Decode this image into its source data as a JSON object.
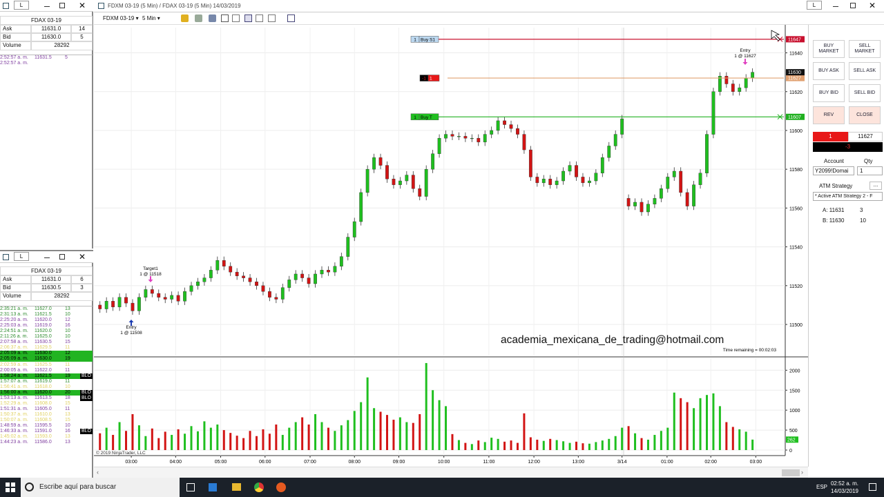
{
  "main": {
    "title": "FDXM 03-19 (5 Min) / FDAX 03-19 (5 Min)  14/03/2019",
    "instrument": "FDXM 03-19",
    "interval": "5 Min"
  },
  "quote_1": {
    "link": "L",
    "title": "FDAX 03-19",
    "ask_label": "Ask",
    "ask": "11631.0",
    "ask_size": "14",
    "bid_label": "Bid",
    "bid": "11630.0",
    "bid_size": "5",
    "volume_label": "Volume",
    "volume": "28292",
    "tape": [
      {
        "time": "2:52:57 a. m.",
        "price": "11631.5",
        "size": "5",
        "color": "#8040a0"
      },
      {
        "time": "2:52:57 a. m.",
        "color": "#8040a0"
      }
    ]
  },
  "quote_2": {
    "link": "L",
    "title": "FDAX 03-19",
    "ask_label": "Ask",
    "ask": "11631.0",
    "ask_size": "6",
    "bid_label": "Bid",
    "bid": "11630.5",
    "bid_size": "3",
    "volume_label": "Volume",
    "volume": "28292",
    "tape": [
      {
        "time": "2:35:21 a. m.",
        "price": "11627.0",
        "size": "13",
        "color": "#2e8b2e"
      },
      {
        "time": "2:31:13 a. m.",
        "price": "11621.5",
        "size": "10",
        "color": "#2e8b2e"
      },
      {
        "time": "2:25:20 a. m.",
        "price": "11620.0",
        "size": "12",
        "color": "#8040a0"
      },
      {
        "time": "2:25:03 a. m.",
        "price": "11619.0",
        "size": "16",
        "color": "#8040a0"
      },
      {
        "time": "2:24:51 a. m.",
        "price": "11620.0",
        "size": "10",
        "color": "#2e8b2e"
      },
      {
        "time": "2:11:26 a. m.",
        "price": "11625.0",
        "size": "10",
        "color": "#2e8b2e"
      },
      {
        "time": "2:07:58 a. m.",
        "price": "11630.5",
        "size": "15",
        "color": "#8040a0"
      },
      {
        "time": "2:06:37 a. m.",
        "price": "11629.5",
        "size": "11",
        "color": "#e0d060"
      },
      {
        "time": "2:05:09 a. m.",
        "price": "11630.0",
        "size": "12",
        "color": "#000000",
        "highlight": "#22b422"
      },
      {
        "time": "2:05:09 a. m.",
        "price": "11630.0",
        "size": "19",
        "color": "#000000",
        "highlight": "#22b422"
      },
      {
        "time": "2:02:59 a. m.",
        "price": "11625.5",
        "size": "11",
        "color": "#e0d060"
      },
      {
        "time": "2:00:05 a. m.",
        "price": "11622.0",
        "size": "11",
        "color": "#8040a0"
      },
      {
        "time": "1:58:24 a. m.",
        "price": "11621.5",
        "size": "19",
        "color": "#000000",
        "highlight": "#22b422",
        "flag": "BLO"
      },
      {
        "time": "1:57:07 a. m.",
        "price": "11619.0",
        "size": "11",
        "color": "#2e8b2e"
      },
      {
        "time": "1:56:41 a. m.",
        "price": "11618.0",
        "size": "10",
        "color": "#e0d060"
      },
      {
        "time": "1:56:00 a. m.",
        "price": "11620.0",
        "size": "20",
        "color": "#000000",
        "highlight": "#22b422",
        "flag": "BLO"
      },
      {
        "time": "1:53:13 a. m.",
        "price": "11613.5",
        "size": "18",
        "color": "#8040a0",
        "flag": "BLO"
      },
      {
        "time": "1:52:29 a. m.",
        "price": "11608.0",
        "size": "15",
        "color": "#e0d060"
      },
      {
        "time": "1:51:31 a. m.",
        "price": "11605.0",
        "size": "11",
        "color": "#8040a0"
      },
      {
        "time": "1:50:37 a. m.",
        "price": "11610.0",
        "size": "13",
        "color": "#e0d060"
      },
      {
        "time": "1:50:07 a. m.",
        "price": "11608.5",
        "size": "15",
        "color": "#e0d060"
      },
      {
        "time": "1:48:59 a. m.",
        "price": "11595.5",
        "size": "10",
        "color": "#8040a0"
      },
      {
        "time": "1:46:33 a. m.",
        "price": "11591.0",
        "size": "16",
        "color": "#8040a0",
        "flag": "BLO"
      },
      {
        "time": "1:45:02 a. m.",
        "price": "11593.0",
        "size": "13",
        "color": "#e0d060"
      },
      {
        "time": "1:44:23 a. m.",
        "price": "11586.0",
        "size": "13",
        "color": "#8040a0"
      }
    ]
  },
  "chart_data": {
    "type": "candlestick",
    "up_color": "#1fbf1f",
    "down_color": "#d21414",
    "grid": true,
    "open": [
      11510,
      11508,
      11512,
      11509,
      11514,
      11511,
      11507,
      11514,
      11518,
      11516,
      11514,
      11513,
      11515,
      11512,
      11517,
      11520,
      11522,
      11524,
      11528,
      11533,
      11530,
      11527,
      11525,
      11524,
      11522,
      11520,
      11517,
      11514,
      11513,
      11519,
      11523,
      11526,
      11524,
      11521,
      11526,
      11528,
      11527,
      11530,
      11535,
      11545,
      11553,
      11568,
      11580,
      11586,
      11582,
      11575,
      11572,
      11574,
      11577,
      11570,
      11566,
      11580,
      11588,
      11596,
      11598,
      11597,
      11597,
      11596,
      11596,
      11594,
      11598,
      11600,
      11605,
      11603,
      11601,
      11598,
      11590,
      11576,
      11573,
      11575,
      11572,
      11574,
      11579,
      11582,
      11576,
      11573,
      11574,
      11578,
      11586,
      11592,
      11598,
      11565,
      11561,
      11563,
      11558,
      11562,
      11565,
      11570,
      11576,
      11579,
      11568,
      11561,
      11572,
      11578,
      11598,
      11620,
      11628,
      11624,
      11620,
      11622,
      11627
    ],
    "high": [
      11512,
      11514,
      11514,
      11516,
      11516,
      11513,
      11516,
      11520,
      11520,
      11518,
      11516,
      11517,
      11517,
      11519,
      11522,
      11524,
      11526,
      11530,
      11535,
      11535,
      11532,
      11529,
      11527,
      11526,
      11524,
      11522,
      11519,
      11516,
      11521,
      11525,
      11528,
      11528,
      11526,
      11528,
      11530,
      11530,
      11532,
      11537,
      11547,
      11555,
      11570,
      11582,
      11588,
      11588,
      11584,
      11577,
      11576,
      11579,
      11579,
      11572,
      11582,
      11590,
      11598,
      11600,
      11600,
      11599,
      11599,
      11598,
      11598,
      11600,
      11602,
      11607,
      11607,
      11605,
      11603,
      11600,
      11592,
      11578,
      11577,
      11577,
      11576,
      11581,
      11584,
      11584,
      11578,
      11576,
      11580,
      11588,
      11594,
      11600,
      11608,
      11567,
      11565,
      11565,
      11564,
      11567,
      11572,
      11578,
      11581,
      11581,
      11570,
      11574,
      11580,
      11600,
      11622,
      11630,
      11630,
      11626,
      11624,
      11629,
      11632
    ],
    "low": [
      11506,
      11506,
      11507,
      11507,
      11509,
      11505,
      11505,
      11512,
      11514,
      11512,
      11511,
      11511,
      11510,
      11510,
      11515,
      11518,
      11520,
      11522,
      11526,
      11528,
      11525,
      11523,
      11522,
      11520,
      11518,
      11515,
      11512,
      11511,
      11511,
      11517,
      11521,
      11522,
      11519,
      11519,
      11524,
      11525,
      11525,
      11528,
      11533,
      11543,
      11551,
      11566,
      11578,
      11580,
      11573,
      11570,
      11570,
      11572,
      11568,
      11564,
      11564,
      11578,
      11586,
      11594,
      11595,
      11595,
      11594,
      11594,
      11592,
      11592,
      11596,
      11598,
      11601,
      11599,
      11596,
      11588,
      11574,
      11571,
      11571,
      11570,
      11570,
      11572,
      11577,
      11574,
      11571,
      11571,
      11572,
      11576,
      11584,
      11590,
      11596,
      11559,
      11559,
      11556,
      11556,
      11560,
      11563,
      11568,
      11574,
      11566,
      11559,
      11559,
      11570,
      11576,
      11596,
      11618,
      11622,
      11618,
      11618,
      11620,
      11625
    ],
    "close": [
      11508,
      11512,
      11509,
      11514,
      11511,
      11507,
      11514,
      11518,
      11516,
      11514,
      11513,
      11515,
      11512,
      11517,
      11520,
      11522,
      11524,
      11528,
      11533,
      11530,
      11527,
      11525,
      11524,
      11522,
      11520,
      11517,
      11514,
      11513,
      11519,
      11523,
      11526,
      11524,
      11521,
      11526,
      11528,
      11527,
      11530,
      11535,
      11545,
      11553,
      11568,
      11580,
      11586,
      11582,
      11575,
      11572,
      11574,
      11577,
      11570,
      11566,
      11580,
      11588,
      11596,
      11598,
      11597,
      11597,
      11596,
      11596,
      11594,
      11598,
      11600,
      11605,
      11603,
      11601,
      11598,
      11590,
      11576,
      11573,
      11575,
      11572,
      11574,
      11579,
      11582,
      11576,
      11573,
      11574,
      11578,
      11586,
      11592,
      11598,
      11606,
      11561,
      11563,
      11558,
      11562,
      11565,
      11570,
      11576,
      11579,
      11568,
      11561,
      11572,
      11578,
      11598,
      11620,
      11628,
      11624,
      11620,
      11622,
      11627,
      11630
    ],
    "volume": [
      420,
      560,
      380,
      700,
      480,
      900,
      620,
      350,
      540,
      300,
      460,
      380,
      520,
      410,
      600,
      470,
      720,
      560,
      640,
      500,
      430,
      360,
      300,
      480,
      350,
      520,
      410,
      640,
      380,
      560,
      700,
      820,
      640,
      900,
      700,
      560,
      480,
      620,
      750,
      980,
      1200,
      1820,
      1050,
      960,
      880,
      760,
      820,
      700,
      680,
      900,
      2180,
      1500,
      1250,
      1100,
      400,
      250,
      180,
      150,
      240,
      200,
      310,
      280,
      210,
      240,
      180,
      920,
      320,
      260,
      230,
      280,
      250,
      220,
      180,
      210,
      170,
      160,
      200,
      240,
      280,
      350,
      560,
      600,
      420,
      300,
      260,
      380,
      480,
      560,
      1440,
      1300,
      1200,
      1050,
      1300,
      1380,
      1420,
      1100,
      700,
      580,
      520,
      460,
      262
    ],
    "xlim": [
      -0.5,
      104.8
    ],
    "xticks": [
      {
        "value": 4.8,
        "label": "03:00"
      },
      {
        "value": 11.6,
        "label": "04:00"
      },
      {
        "value": 18.5,
        "label": "05:00"
      },
      {
        "value": 25.3,
        "label": "06:00"
      },
      {
        "value": 32.2,
        "label": "07:00"
      },
      {
        "value": 39,
        "label": "08:00"
      },
      {
        "value": 45.8,
        "label": "09:00"
      },
      {
        "value": 52.7,
        "label": "10:00"
      },
      {
        "value": 59.6,
        "label": "11:00"
      },
      {
        "value": 66.5,
        "label": "12:00"
      },
      {
        "value": 73.3,
        "label": "13:00"
      },
      {
        "value": 80,
        "label": "3/14"
      },
      {
        "value": 86.9,
        "label": "01:00"
      },
      {
        "value": 93.6,
        "label": "02:00"
      },
      {
        "value": 100.5,
        "label": "03:00"
      }
    ],
    "ylim": [
      11484,
      11653
    ],
    "yticks": [
      11500,
      11520,
      11540,
      11560,
      11580,
      11600,
      11620,
      11640
    ],
    "volume_ylim": [
      0,
      2300
    ],
    "volume_yticks": [
      0,
      500,
      1000,
      1500,
      2000
    ],
    "orders": [
      {
        "qty": "1",
        "label": "Buy S1",
        "price": 11647,
        "color": "#c8102e"
      },
      {
        "qty": "-1",
        "label": "1",
        "price": 11627,
        "color": "#e0a070"
      },
      {
        "qty": "1",
        "label": "Buy T",
        "price": 11607,
        "color": "#20b020"
      }
    ],
    "annotations": [
      {
        "label": "Target1",
        "detail": "1 @ 11518"
      },
      {
        "label": "Entry",
        "detail": "1 @ 11508"
      },
      {
        "label": "Entry",
        "detail": "1 @ 11627"
      }
    ],
    "watermark": "academia_mexicana_de_trading@hotmail.com",
    "time_remaining": "Time remaining = 00:02:03",
    "copyright": "© 2019 NinjaTrader, LLC"
  },
  "order_panel": {
    "buttons": [
      "BUY MARKET",
      "SELL MARKET",
      "BUY ASK",
      "SELL ASK",
      "BUY BID",
      "SELL BID",
      "REV",
      "CLOSE"
    ],
    "position_qty": "1",
    "position_price": "11627",
    "pnl": "-3",
    "account_label": "Account",
    "qty_label": "Qty",
    "account": "Y2099!Domai",
    "qty": "1",
    "atm_label": "ATM Strategy",
    "more": "...",
    "atm": "* Active ATM Strategy 2 - F",
    "ask_line": "A: 11631",
    "ask_size": "3",
    "bid_line": "B: 11630",
    "bid_size": "10"
  },
  "taskbar": {
    "search": "Escribe aquí para buscar",
    "lang": "ESP",
    "time": "02:52 a. m.",
    "date": "14/03/2019"
  }
}
